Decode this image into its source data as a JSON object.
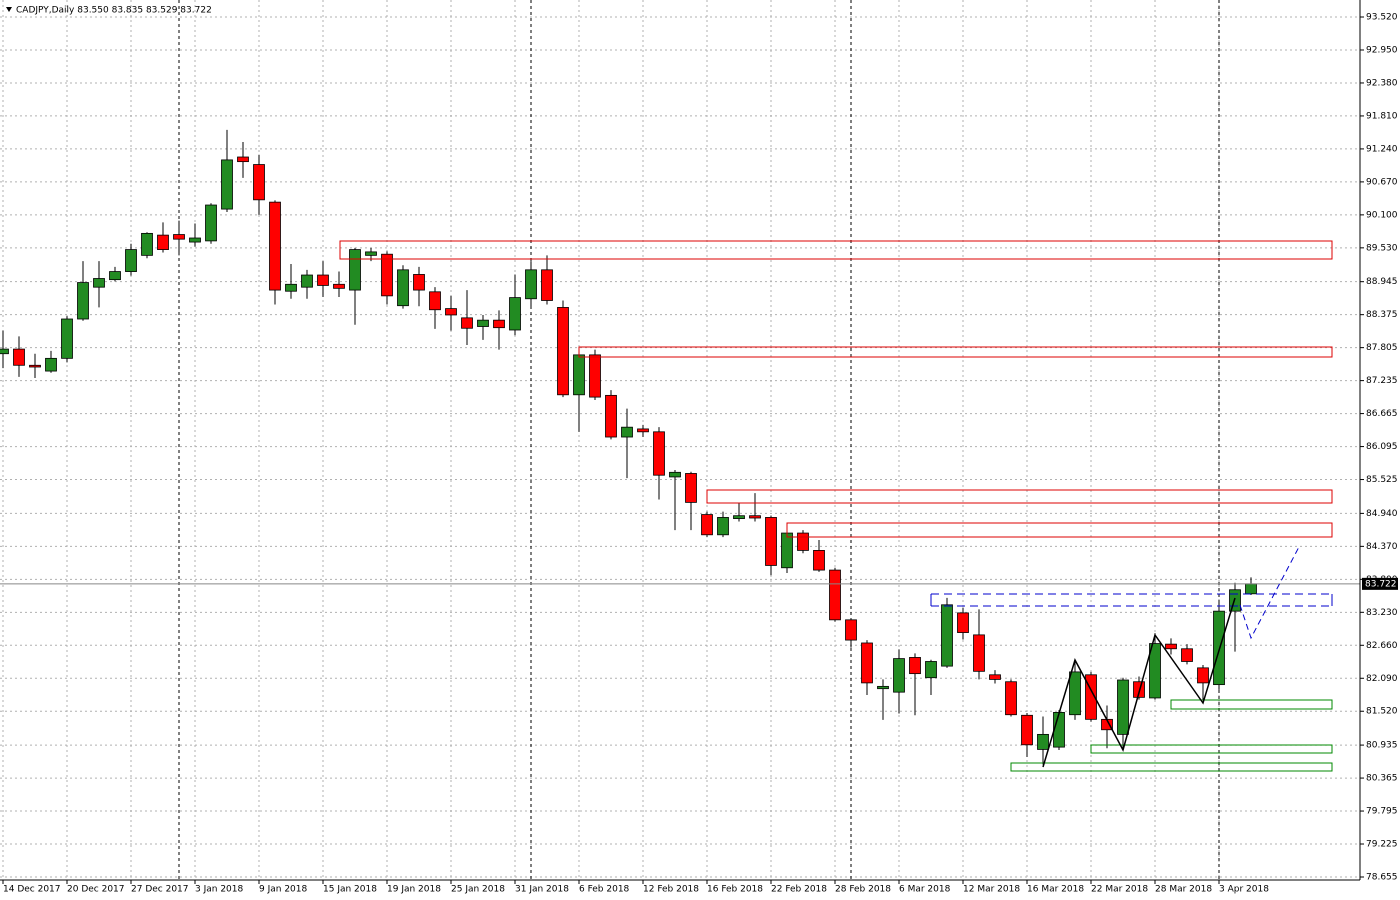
{
  "chart_data": {
    "type": "candlestick",
    "title": "CADJPY,Daily  83.550 83.835 83.529 83.722",
    "up_color": "#228b22",
    "down_color": "#ff0000",
    "grid": true,
    "categories": [
      "14 Dec 2017",
      null,
      null,
      null,
      "20 Dec 2017",
      null,
      null,
      null,
      "27 Dec 2017",
      null,
      null,
      null,
      "3 Jan 2018",
      null,
      null,
      null,
      "9 Jan 2018",
      null,
      null,
      null,
      "15 Jan 2018",
      null,
      null,
      null,
      "19 Jan 2018",
      null,
      null,
      null,
      "25 Jan 2018",
      null,
      null,
      null,
      "31 Jan 2018",
      null,
      null,
      null,
      "6 Feb 2018",
      null,
      null,
      null,
      "12 Feb 2018",
      null,
      null,
      null,
      "16 Feb 2018",
      null,
      null,
      null,
      "22 Feb 2018",
      null,
      null,
      null,
      "28 Feb 2018",
      null,
      null,
      null,
      "6 Mar 2018",
      null,
      null,
      null,
      "12 Mar 2018",
      null,
      null,
      null,
      "16 Mar 2018",
      null,
      null,
      null,
      "22 Mar 2018",
      null,
      null,
      null,
      "28 Mar 2018",
      null,
      null,
      null,
      "3 Apr 2018",
      null,
      null
    ],
    "open": [
      87.7,
      87.78,
      87.5,
      87.4,
      87.62,
      88.3,
      88.85,
      88.98,
      89.12,
      89.4,
      89.75,
      89.76,
      89.63,
      89.65,
      90.2,
      91.1,
      90.97,
      90.32,
      88.78,
      88.85,
      89.06,
      88.9,
      88.8,
      89.4,
      89.42,
      88.53,
      89.07,
      88.77,
      88.48,
      88.32,
      88.17,
      88.28,
      88.11,
      88.65,
      89.15,
      88.5,
      86.99,
      87.68,
      86.98,
      86.26,
      86.4,
      86.35,
      85.57,
      85.63,
      84.92,
      84.57,
      84.85,
      84.9,
      84.87,
      84.0,
      84.6,
      84.3,
      83.96,
      83.1,
      82.7,
      81.91,
      81.85,
      82.45,
      82.1,
      82.3,
      83.22,
      82.84,
      82.15,
      82.03,
      81.45,
      80.86,
      80.9,
      81.46,
      82.15,
      81.38,
      81.12,
      82.03,
      81.75,
      82.68,
      82.6,
      82.27,
      81.98,
      83.25,
      83.55
    ],
    "high": [
      88.1,
      88.0,
      87.7,
      87.75,
      88.35,
      89.3,
      89.3,
      89.2,
      89.6,
      89.8,
      89.97,
      90.0,
      89.95,
      90.3,
      91.57,
      91.36,
      91.14,
      90.35,
      89.25,
      89.15,
      89.3,
      89.12,
      89.53,
      89.53,
      89.47,
      89.23,
      89.2,
      88.85,
      88.7,
      88.8,
      88.37,
      88.45,
      89.07,
      89.3,
      89.4,
      88.62,
      87.77,
      87.77,
      87.07,
      86.75,
      86.47,
      86.43,
      85.69,
      85.66,
      84.97,
      84.97,
      85.12,
      85.29,
      84.9,
      84.65,
      84.65,
      84.48,
      84.0,
      83.13,
      82.75,
      82.07,
      82.59,
      82.52,
      82.41,
      83.48,
      83.31,
      83.28,
      82.23,
      82.07,
      81.49,
      81.43,
      81.54,
      82.41,
      82.2,
      81.62,
      82.1,
      82.12,
      82.87,
      82.78,
      82.68,
      82.32,
      83.45,
      83.74,
      83.835
    ],
    "low": [
      87.45,
      87.3,
      87.28,
      87.37,
      87.55,
      88.27,
      88.5,
      88.95,
      89.05,
      89.35,
      89.45,
      89.4,
      89.55,
      89.6,
      90.15,
      90.74,
      90.1,
      88.55,
      88.65,
      88.65,
      88.68,
      88.68,
      88.2,
      89.3,
      88.55,
      88.48,
      88.52,
      88.13,
      88.1,
      87.85,
      87.94,
      87.77,
      88.02,
      88.48,
      88.55,
      86.95,
      86.35,
      86.9,
      86.22,
      85.55,
      86.26,
      85.18,
      84.65,
      84.65,
      84.53,
      84.53,
      84.8,
      84.8,
      83.87,
      83.91,
      84.25,
      83.93,
      83.07,
      82.62,
      81.8,
      81.37,
      81.48,
      81.45,
      81.8,
      82.27,
      82.76,
      82.07,
      82.0,
      81.43,
      80.73,
      80.6,
      80.85,
      81.37,
      81.34,
      80.88,
      80.85,
      81.72,
      81.72,
      82.5,
      82.33,
      81.72,
      81.89,
      82.55,
      83.529
    ],
    "close": [
      87.78,
      87.5,
      87.47,
      87.62,
      88.3,
      88.93,
      89.0,
      89.12,
      89.5,
      89.78,
      89.5,
      89.68,
      89.7,
      90.27,
      91.05,
      91.02,
      90.36,
      88.8,
      88.9,
      89.06,
      88.88,
      88.83,
      89.5,
      89.46,
      88.7,
      89.15,
      88.8,
      88.46,
      88.37,
      88.14,
      88.28,
      88.15,
      88.67,
      89.15,
      88.62,
      86.99,
      87.68,
      86.95,
      86.26,
      86.43,
      86.35,
      85.6,
      85.65,
      85.13,
      84.57,
      84.87,
      84.9,
      84.86,
      84.04,
      84.6,
      84.3,
      83.96,
      83.1,
      82.75,
      82.01,
      81.95,
      82.43,
      82.17,
      82.38,
      83.36,
      82.88,
      82.21,
      82.07,
      81.46,
      80.94,
      81.12,
      81.5,
      82.2,
      81.38,
      81.2,
      82.06,
      81.76,
      82.69,
      82.6,
      82.38,
      82.01,
      83.25,
      83.62,
      83.722
    ],
    "current_price": {
      "value": 83.722,
      "label": "83.722"
    },
    "ylim": [
      78.603,
      93.814
    ],
    "yticks": [
      {
        "value": 93.52,
        "label": "93.520"
      },
      {
        "value": 92.95,
        "label": "92.950"
      },
      {
        "value": 92.38,
        "label": "92.380"
      },
      {
        "value": 91.81,
        "label": "91.810"
      },
      {
        "value": 91.24,
        "label": "91.240"
      },
      {
        "value": 90.67,
        "label": "90.670"
      },
      {
        "value": 90.1,
        "label": "90.100"
      },
      {
        "value": 89.53,
        "label": "89.530"
      },
      {
        "value": 88.945,
        "label": "88.945"
      },
      {
        "value": 88.375,
        "label": "88.375"
      },
      {
        "value": 87.805,
        "label": "87.805"
      },
      {
        "value": 87.235,
        "label": "87.235"
      },
      {
        "value": 86.665,
        "label": "86.665"
      },
      {
        "value": 86.095,
        "label": "86.095"
      },
      {
        "value": 85.525,
        "label": "85.525"
      },
      {
        "value": 84.94,
        "label": "84.940"
      },
      {
        "value": 84.37,
        "label": "84.370"
      },
      {
        "value": 83.8,
        "label": "83.800"
      },
      {
        "value": 83.23,
        "label": "83.230"
      },
      {
        "value": 82.66,
        "label": "82.660"
      },
      {
        "value": 82.09,
        "label": "82.090"
      },
      {
        "value": 81.52,
        "label": "81.520"
      },
      {
        "value": 80.935,
        "label": "80.935"
      },
      {
        "value": 80.365,
        "label": "80.365"
      },
      {
        "value": 79.795,
        "label": "79.795"
      },
      {
        "value": 79.225,
        "label": "79.225"
      },
      {
        "value": 78.655,
        "label": "78.655"
      }
    ]
  }
}
